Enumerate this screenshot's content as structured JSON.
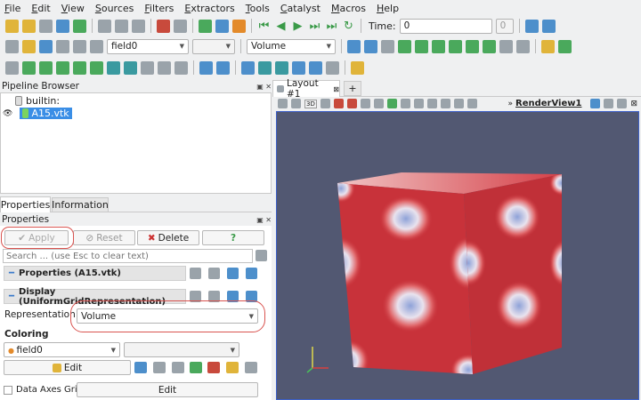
{
  "menubar": {
    "items": [
      "File",
      "Edit",
      "View",
      "Sources",
      "Filters",
      "Extractors",
      "Tools",
      "Catalyst",
      "Macros",
      "Help"
    ]
  },
  "toolbar": {
    "time_label": "Time:",
    "time_value": "0",
    "time_step": "0",
    "field_array": "field0",
    "representation": "Volume"
  },
  "pipeline": {
    "title": "Pipeline Browser",
    "root": "builtin:",
    "item": "A15.vtk"
  },
  "tabs": {
    "properties": "Properties",
    "information": "Information"
  },
  "properties": {
    "title": "Properties",
    "apply": "Apply",
    "reset": "Reset",
    "delete": "Delete",
    "help": "?",
    "search_placeholder": "Search ... (use Esc to clear text)",
    "section_properties": "Properties (A15.vtk)",
    "section_display": "Display (UniformGridRepresentation)",
    "representation_label": "Representation",
    "representation_value": "Volume",
    "coloring_label": "Coloring",
    "coloring_value": "field0",
    "edit": "Edit",
    "data_axes_grid": "Data Axes Grid",
    "edit2": "Edit"
  },
  "layout": {
    "tab": "Layout #1",
    "add": "+",
    "render_view": "RenderView1",
    "three_d": "3D"
  },
  "colors": {
    "accent": "#3c5fc7",
    "apply_oval": "#d9534f",
    "viewport_bg": "#525872",
    "cube_red": "#c8323a"
  }
}
